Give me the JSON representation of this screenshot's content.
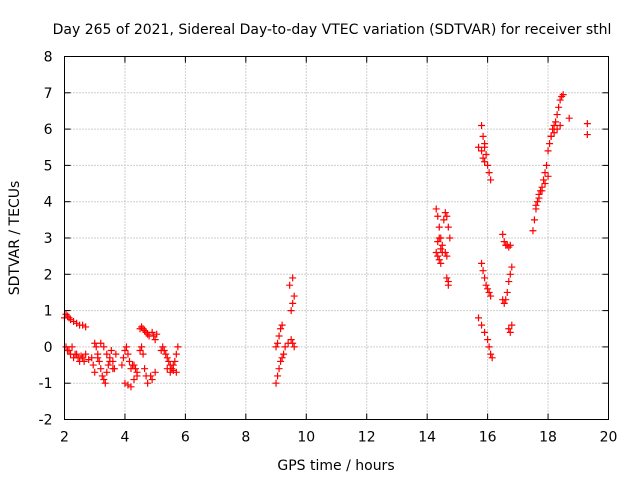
{
  "chart_data": {
    "type": "scatter",
    "title": "Day 265 of 2021, Sidereal Day-to-day VTEC variation (SDTVAR) for receiver sthl",
    "xlabel": "GPS time / hours",
    "ylabel": "SDTVAR / TECUs",
    "xlim": [
      2,
      20
    ],
    "ylim": [
      -2,
      8
    ],
    "xticks": [
      "2",
      "4",
      "6",
      "8",
      "10",
      "12",
      "14",
      "16",
      "18",
      "20"
    ],
    "yticks": [
      "-2",
      "-1",
      "0",
      "1",
      "2",
      "3",
      "4",
      "5",
      "6",
      "7",
      "8"
    ],
    "grid": true,
    "marker": "+",
    "series": [
      {
        "name": "SDTVAR",
        "color": "#ff0000",
        "x": [
          2.0,
          2.05,
          2.1,
          2.15,
          2.2,
          2.3,
          2.4,
          2.5,
          2.6,
          2.7,
          2.05,
          2.1,
          2.2,
          2.3,
          2.4,
          2.5,
          2.6,
          2.7,
          2.8,
          2.9,
          2.15,
          2.25,
          2.35,
          2.45,
          2.55,
          2.65,
          3.0,
          3.05,
          3.1,
          3.15,
          3.2,
          3.25,
          2.95,
          3.0,
          3.1,
          3.2,
          3.3,
          3.35,
          3.4,
          3.45,
          3.5,
          3.55,
          3.6,
          3.65,
          3.7,
          3.3,
          3.4,
          3.5,
          3.6,
          3.9,
          3.95,
          4.0,
          4.05,
          4.1,
          4.15,
          4.2,
          4.25,
          4.0,
          4.1,
          4.2,
          4.3,
          4.4,
          4.3,
          4.35,
          4.4,
          4.5,
          4.55,
          4.6,
          4.65,
          4.7,
          4.75,
          4.8,
          4.5,
          4.55,
          4.6,
          4.65,
          4.7,
          4.75,
          4.9,
          4.95,
          5.0,
          5.05,
          4.85,
          4.9,
          5.0,
          5.2,
          5.25,
          5.3,
          5.35,
          5.4,
          5.45,
          5.5,
          5.55,
          5.6,
          5.65,
          5.7,
          5.75,
          5.4,
          5.5,
          5.6,
          5.7,
          9.0,
          9.05,
          9.1,
          9.15,
          9.2,
          9.25,
          9.0,
          9.05,
          9.1,
          9.15,
          9.2,
          9.3,
          9.4,
          9.5,
          9.55,
          9.6,
          9.5,
          9.55,
          9.6,
          9.45,
          9.55,
          14.3,
          14.35,
          14.4,
          14.45,
          14.5,
          14.3,
          14.35,
          14.4,
          14.45,
          14.35,
          14.4,
          14.45,
          14.5,
          14.55,
          14.6,
          14.65,
          14.7,
          14.75,
          14.6,
          14.65,
          14.7,
          14.65,
          14.7,
          15.8,
          15.85,
          15.9,
          15.95,
          16.0,
          16.05,
          16.1,
          15.7,
          15.8,
          15.9,
          15.85,
          15.9,
          15.7,
          15.8,
          15.9,
          16.0,
          16.05,
          16.1,
          16.15,
          15.8,
          15.85,
          15.9,
          15.95,
          16.0,
          16.05,
          16.1,
          16.5,
          16.55,
          16.6,
          16.65,
          16.7,
          16.75,
          16.5,
          16.55,
          16.6,
          16.65,
          16.7,
          16.75,
          16.8,
          16.7,
          16.75,
          16.8,
          17.5,
          17.55,
          17.6,
          17.65,
          17.7,
          17.75,
          17.8,
          17.85,
          17.9,
          17.95,
          17.6,
          17.7,
          17.8,
          17.9,
          18.0,
          18.0,
          18.05,
          18.1,
          18.15,
          18.2,
          18.25,
          18.3,
          18.35,
          18.4,
          18.45,
          18.5,
          18.1,
          18.2,
          18.3,
          18.4,
          18.7,
          19.3,
          19.3
        ],
        "y": [
          0.8,
          0.9,
          0.85,
          0.8,
          0.75,
          0.7,
          0.65,
          0.6,
          0.6,
          0.55,
          0.0,
          -0.1,
          -0.2,
          -0.3,
          -0.2,
          -0.4,
          -0.3,
          -0.2,
          -0.35,
          -0.3,
          -0.1,
          0.0,
          -0.2,
          -0.3,
          -0.25,
          -0.4,
          0.1,
          0.0,
          -0.2,
          -0.4,
          -0.6,
          -0.8,
          -0.5,
          -0.7,
          -0.3,
          0.1,
          -0.9,
          -1.0,
          -0.7,
          -0.5,
          -0.3,
          -0.1,
          -0.4,
          -0.6,
          -0.2,
          0.0,
          -0.2,
          -0.4,
          -0.6,
          -0.5,
          -0.3,
          -0.1,
          0.0,
          -0.2,
          -0.4,
          -0.6,
          -0.5,
          -1.0,
          -1.05,
          -1.1,
          -0.9,
          -0.8,
          -0.5,
          -0.6,
          -0.7,
          0.5,
          0.55,
          0.5,
          0.45,
          0.4,
          0.35,
          0.3,
          -0.1,
          0.0,
          -0.2,
          -0.6,
          -0.8,
          -1.0,
          0.4,
          0.3,
          0.2,
          0.35,
          -0.8,
          -0.9,
          -0.7,
          -0.1,
          0.0,
          -0.1,
          -0.2,
          -0.3,
          -0.4,
          -0.5,
          -0.6,
          -0.5,
          -0.4,
          -0.2,
          0.0,
          -0.6,
          -0.7,
          -0.65,
          -0.7,
          -1.0,
          -0.8,
          -0.6,
          -0.4,
          -0.3,
          -0.2,
          0.0,
          0.1,
          0.3,
          0.5,
          0.6,
          0.0,
          0.1,
          0.2,
          0.1,
          0.0,
          1.0,
          1.2,
          1.4,
          1.7,
          1.9,
          3.8,
          3.6,
          3.3,
          3.0,
          2.8,
          2.6,
          2.5,
          2.4,
          2.3,
          2.9,
          3.0,
          2.7,
          2.6,
          3.5,
          3.7,
          3.6,
          3.3,
          3.0,
          2.6,
          2.5,
          1.8,
          1.9,
          1.7,
          6.1,
          5.8,
          5.5,
          5.3,
          5.0,
          4.8,
          4.6,
          5.5,
          5.4,
          5.6,
          5.2,
          5.1,
          0.8,
          0.6,
          0.4,
          0.2,
          0.0,
          -0.2,
          -0.3,
          2.3,
          2.1,
          1.9,
          1.7,
          1.6,
          1.5,
          1.4,
          3.1,
          2.9,
          2.8,
          2.8,
          2.75,
          2.8,
          1.3,
          1.2,
          1.3,
          1.5,
          1.8,
          2.0,
          2.2,
          0.5,
          0.4,
          0.6,
          3.2,
          3.5,
          3.8,
          4.0,
          4.2,
          4.3,
          4.4,
          4.6,
          4.8,
          5.0,
          3.9,
          4.1,
          4.3,
          4.5,
          4.7,
          5.4,
          5.6,
          5.8,
          6.0,
          6.1,
          6.2,
          6.4,
          6.6,
          6.8,
          6.9,
          6.95,
          5.8,
          5.9,
          6.0,
          6.1,
          6.3,
          6.15,
          5.85
        ]
      }
    ]
  }
}
